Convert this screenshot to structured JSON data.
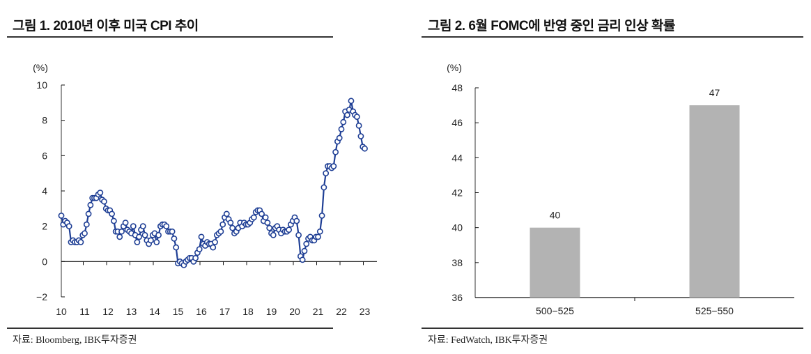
{
  "chart_data": [
    {
      "type": "line",
      "title": "그림 1. 2010년 이후 미국 CPI 추이",
      "ylabel": "(%)",
      "ylim": [
        -2,
        10
      ],
      "yticks": [
        "-2",
        "0",
        "2",
        "4",
        "6",
        "8",
        "10"
      ],
      "xticks": [
        "10",
        "11",
        "12",
        "13",
        "14",
        "15",
        "16",
        "17",
        "18",
        "19",
        "20",
        "21",
        "22",
        "23"
      ],
      "x_start": "2010-01",
      "frequency": "monthly",
      "color": "#1f3f95",
      "source": "자료: Bloomberg, IBK투자증권",
      "values": [
        2.6,
        2.1,
        2.3,
        2.2,
        2.0,
        1.1,
        1.2,
        1.1,
        1.1,
        1.2,
        1.1,
        1.5,
        1.6,
        2.1,
        2.7,
        3.2,
        3.6,
        3.6,
        3.6,
        3.8,
        3.9,
        3.5,
        3.4,
        3.0,
        2.9,
        2.9,
        2.7,
        2.3,
        1.7,
        1.7,
        1.4,
        1.7,
        2.0,
        2.2,
        1.8,
        1.7,
        1.6,
        2.0,
        1.5,
        1.1,
        1.4,
        1.8,
        2.0,
        1.5,
        1.2,
        1.0,
        1.2,
        1.5,
        1.6,
        1.1,
        1.5,
        2.0,
        2.1,
        2.1,
        2.0,
        1.7,
        1.7,
        1.7,
        1.3,
        0.8,
        -0.1,
        0.0,
        -0.1,
        -0.2,
        0.0,
        0.1,
        0.2,
        0.2,
        0.0,
        0.2,
        0.5,
        0.7,
        1.4,
        1.0,
        0.9,
        1.1,
        1.0,
        1.0,
        0.8,
        1.1,
        1.5,
        1.6,
        1.7,
        2.1,
        2.5,
        2.7,
        2.4,
        2.2,
        1.9,
        1.6,
        1.7,
        1.9,
        2.2,
        2.0,
        2.2,
        2.1,
        2.1,
        2.2,
        2.4,
        2.5,
        2.8,
        2.9,
        2.9,
        2.7,
        2.3,
        2.5,
        2.2,
        1.9,
        1.6,
        1.5,
        1.9,
        2.0,
        1.8,
        1.6,
        1.8,
        1.7,
        1.7,
        1.8,
        2.1,
        2.3,
        2.5,
        2.3,
        1.5,
        0.3,
        0.1,
        0.6,
        1.0,
        1.3,
        1.4,
        1.2,
        1.2,
        1.4,
        1.4,
        1.7,
        2.6,
        4.2,
        5.0,
        5.4,
        5.4,
        5.3,
        5.4,
        6.2,
        6.8,
        7.0,
        7.5,
        7.9,
        8.5,
        8.3,
        8.6,
        9.1,
        8.5,
        8.3,
        8.2,
        7.7,
        7.1,
        6.5,
        6.4
      ]
    },
    {
      "type": "bar",
      "title": "그림 2. 6월 FOMC에 반영 중인 금리 인상 확률",
      "ylabel": "(%)",
      "ylim": [
        36,
        48
      ],
      "yticks": [
        "36",
        "38",
        "40",
        "42",
        "44",
        "46",
        "48"
      ],
      "categories": [
        "500-525",
        "525-550"
      ],
      "values": [
        40,
        47
      ],
      "labels": [
        "40",
        "47"
      ],
      "color": "#b3b3b3",
      "source": "자료: FedWatch, IBK투자증권"
    }
  ]
}
